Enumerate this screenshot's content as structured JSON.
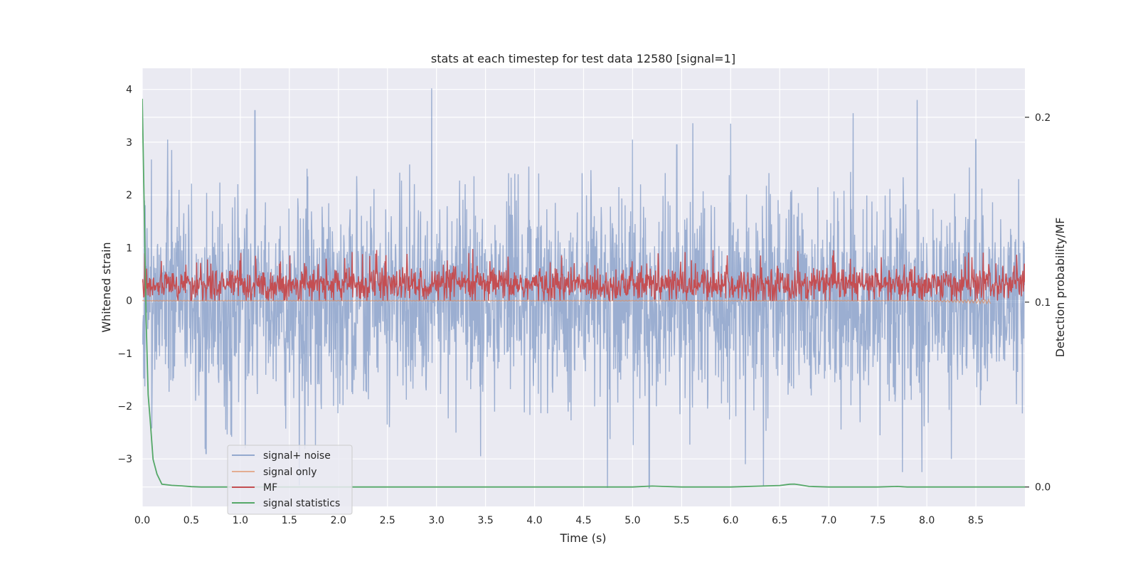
{
  "chart_data": {
    "type": "line",
    "title": "stats at each timestep for test data 12580 [signal=1]",
    "xlabel": "Time (s)",
    "ylabel": "Whitened strain",
    "ylabel_right": "Detection probability/MF",
    "xlim": [
      0.0,
      9.0
    ],
    "ylim": [
      -3.9,
      4.4
    ],
    "ylim_right": [
      -0.0105,
      0.2265
    ],
    "grid": true,
    "legend_position": "lower-left",
    "x_ticks": [
      "0.0",
      "0.5",
      "1.0",
      "1.5",
      "2.0",
      "2.5",
      "3.0",
      "3.5",
      "4.0",
      "4.5",
      "5.0",
      "5.5",
      "6.0",
      "6.5",
      "7.0",
      "7.5",
      "8.0",
      "8.5"
    ],
    "y_ticks": [
      "4",
      "3",
      "2",
      "1",
      "0",
      "−1",
      "−2",
      "−3"
    ],
    "y_ticks_right": [
      "0.2",
      "0.1",
      "0.0"
    ],
    "series": [
      {
        "name": "signal+ noise",
        "color": "#4c72b0",
        "axis": "left",
        "description": "dense noise trace, typical range about -2.2 to 2.4, extremes about -3.6 to 4.0",
        "x_range": [
          0.0,
          9.0
        ],
        "approx_min": -3.55,
        "approx_max": 4.02,
        "peaks": [
          [
            0.26,
            3.05
          ],
          [
            1.15,
            3.6
          ],
          [
            2.95,
            4.02
          ],
          [
            5.0,
            3.05
          ],
          [
            5.45,
            2.95
          ],
          [
            6.0,
            3.35
          ],
          [
            7.25,
            3.55
          ],
          [
            7.9,
            3.8
          ],
          [
            8.5,
            3.05
          ]
        ],
        "troughs": [
          [
            0.65,
            -2.9
          ],
          [
            1.05,
            -2.8
          ],
          [
            1.6,
            -3.5
          ],
          [
            3.45,
            -2.95
          ],
          [
            5.17,
            -3.55
          ],
          [
            6.15,
            -3.1
          ],
          [
            7.75,
            -3.25
          ],
          [
            7.95,
            -3.25
          ],
          [
            8.25,
            -3.0
          ]
        ]
      },
      {
        "name": "signal only",
        "color": "#dd8452",
        "axis": "left",
        "description": "near-zero trace, visible slightly below zero near the end",
        "x_range": [
          0.0,
          8.65
        ],
        "approx_min": -0.07,
        "approx_max": 0.05
      },
      {
        "name": "MF",
        "color": "#c44e52",
        "axis": "left",
        "description": "matched filter magnitude, between about 0 and 0.7, occasional spikes to 1.0",
        "x_range": [
          0.0,
          9.0
        ],
        "approx_min": 0.0,
        "approx_max": 0.99
      },
      {
        "name": "signal statistics",
        "color": "#55a868",
        "axis": "right",
        "x": [
          0.0,
          0.02,
          0.04,
          0.06,
          0.08,
          0.11,
          0.15,
          0.2,
          0.3,
          0.4,
          0.5,
          0.6,
          0.8,
          1.0,
          2.0,
          3.0,
          4.0,
          5.0,
          5.2,
          5.3,
          5.5,
          6.0,
          6.5,
          6.6,
          6.65,
          6.7,
          6.8,
          7.0,
          7.5,
          7.7,
          7.8,
          8.0,
          9.0
        ],
        "values": [
          0.21,
          0.15,
          0.09,
          0.05,
          0.037,
          0.015,
          0.007,
          0.0015,
          0.0009,
          0.0006,
          0.0002,
          0.0,
          0.0,
          0.0,
          0.0,
          0.0,
          0.0,
          0.0,
          0.0005,
          0.0003,
          0.0,
          0.0,
          0.0008,
          0.0015,
          0.0016,
          0.0012,
          0.0003,
          0.0,
          0.0,
          0.0003,
          0.0,
          0.0,
          0.0
        ]
      }
    ]
  }
}
